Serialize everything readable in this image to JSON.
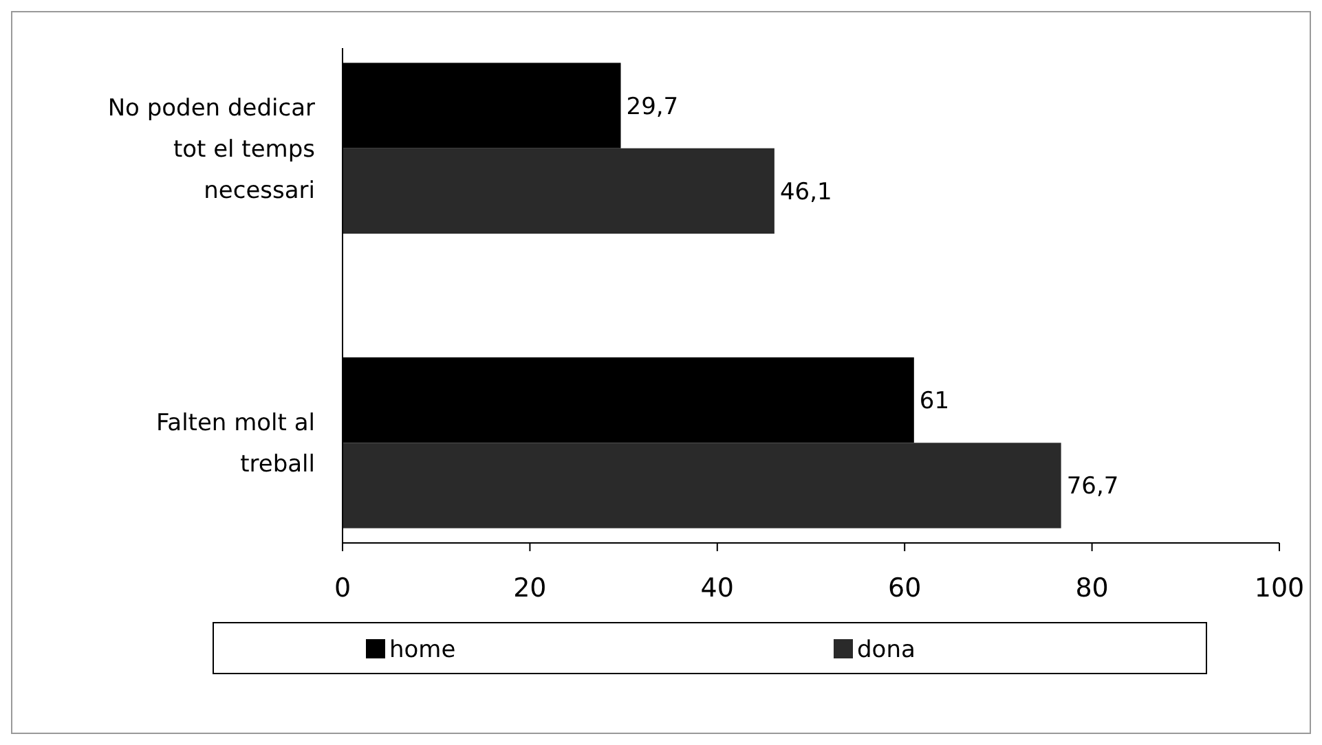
{
  "chart_data": {
    "type": "bar",
    "orientation": "horizontal",
    "categories": [
      "No poden dedicar tot el temps necessari",
      "Falten molt al treball"
    ],
    "series": [
      {
        "name": "home",
        "color": "#000000",
        "values": [
          29.7,
          61
        ],
        "value_labels": [
          "29,7",
          "61"
        ]
      },
      {
        "name": "dona",
        "color": "#2a2a2a",
        "values": [
          46.1,
          76.7
        ],
        "value_labels": [
          "46,1",
          "76,7"
        ]
      }
    ],
    "xlim": [
      0,
      100
    ],
    "xticks": [
      0,
      20,
      40,
      60,
      80,
      100
    ],
    "grid": false,
    "legend": "bottom"
  }
}
